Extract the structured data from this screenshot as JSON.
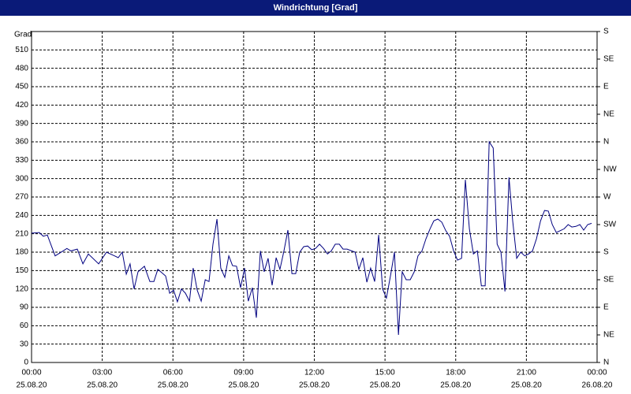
{
  "chart_data": {
    "type": "line",
    "title": "Windrichtung [Grad]",
    "y_label": "Grad",
    "x": [
      0,
      0.33,
      0.5,
      0.67,
      1.0,
      1.34,
      1.5,
      1.67,
      1.94,
      2.18,
      2.41,
      2.85,
      3.18,
      3.52,
      3.68,
      3.85,
      4.02,
      4.18,
      4.35,
      4.52,
      4.79,
      5.02,
      5.19,
      5.36,
      5.69,
      5.86,
      6.03,
      6.19,
      6.36,
      6.53,
      6.7,
      6.86,
      7.03,
      7.2,
      7.37,
      7.53,
      7.7,
      7.87,
      8.03,
      8.2,
      8.37,
      8.53,
      8.7,
      8.87,
      9.04,
      9.2,
      9.37,
      9.54,
      9.71,
      9.87,
      10.04,
      10.21,
      10.38,
      10.54,
      10.71,
      10.88,
      11.05,
      11.21,
      11.38,
      11.55,
      11.72,
      11.89,
      12.05,
      12.22,
      12.39,
      12.56,
      12.72,
      12.89,
      13.06,
      13.22,
      13.39,
      13.73,
      13.89,
      14.06,
      14.23,
      14.39,
      14.56,
      14.73,
      14.9,
      15.06,
      15.23,
      15.4,
      15.57,
      15.73,
      15.9,
      16.07,
      16.24,
      16.4,
      16.57,
      16.74,
      16.91,
      17.07,
      17.24,
      17.41,
      17.58,
      17.74,
      17.91,
      18.08,
      18.25,
      18.41,
      18.58,
      18.75,
      18.92,
      19.09,
      19.25,
      19.42,
      19.59,
      19.76,
      19.92,
      20.09,
      20.26,
      20.42,
      20.59,
      20.76,
      20.93,
      21.09,
      21.26,
      21.43,
      21.6,
      21.77,
      21.93,
      22.1,
      22.27,
      22.43,
      22.6,
      22.77,
      22.93,
      23.1,
      23.27,
      23.43,
      23.6,
      23.77
    ],
    "series": [
      {
        "name": "Windrichtung",
        "color": "#000080",
        "values": [
          211,
          212,
          206,
          208,
          174,
          182,
          186,
          182,
          185,
          161,
          177,
          161,
          180,
          174,
          171,
          180,
          144,
          161,
          120,
          148,
          157,
          132,
          132,
          152,
          141,
          113,
          118,
          99,
          120,
          113,
          100,
          154,
          118,
          100,
          135,
          132,
          193,
          234,
          154,
          139,
          174,
          158,
          157,
          122,
          154,
          100,
          122,
          73,
          182,
          148,
          170,
          126,
          171,
          152,
          182,
          216,
          145,
          145,
          180,
          189,
          190,
          184,
          186,
          193,
          186,
          177,
          182,
          193,
          193,
          185,
          185,
          180,
          152,
          171,
          131,
          154,
          132,
          208,
          120,
          105,
          141,
          180,
          45,
          148,
          135,
          135,
          148,
          174,
          182,
          202,
          218,
          231,
          234,
          229,
          215,
          206,
          182,
          167,
          170,
          298,
          218,
          177,
          182,
          125,
          125,
          360,
          350,
          193,
          180,
          116,
          302,
          231,
          170,
          180,
          174,
          177,
          182,
          202,
          231,
          248,
          247,
          225,
          212,
          215,
          218,
          225,
          221,
          222,
          225,
          216,
          225,
          227
        ]
      }
    ],
    "xlim": [
      0,
      24
    ],
    "xticks": [
      {
        "value": 0,
        "label": "00:00"
      },
      {
        "value": 3,
        "label": "03:00"
      },
      {
        "value": 6,
        "label": "06:00"
      },
      {
        "value": 9,
        "label": "09:00"
      },
      {
        "value": 12,
        "label": "12:00"
      },
      {
        "value": 15,
        "label": "15:00"
      },
      {
        "value": 18,
        "label": "18:00"
      },
      {
        "value": 21,
        "label": "21:00"
      },
      {
        "value": 24,
        "label": "00:00"
      }
    ],
    "xtick_dates": [
      "25.08.20",
      "25.08.20",
      "25.08.20",
      "25.08.20",
      "25.08.20",
      "25.08.20",
      "25.08.20",
      "25.08.20",
      "26.08.20"
    ],
    "ylim": [
      0,
      540
    ],
    "yticks": [
      0,
      30,
      60,
      90,
      120,
      150,
      180,
      210,
      240,
      270,
      300,
      330,
      360,
      390,
      420,
      450,
      480,
      510
    ],
    "y2lim": [
      0,
      540
    ],
    "y2ticks": [
      {
        "value": 0,
        "label": "N"
      },
      {
        "value": 45,
        "label": "NE"
      },
      {
        "value": 90,
        "label": "E"
      },
      {
        "value": 135,
        "label": "SE"
      },
      {
        "value": 180,
        "label": "S"
      },
      {
        "value": 225,
        "label": "SW"
      },
      {
        "value": 270,
        "label": "W"
      },
      {
        "value": 315,
        "label": "NW"
      },
      {
        "value": 360,
        "label": "N"
      },
      {
        "value": 405,
        "label": "NE"
      },
      {
        "value": 450,
        "label": "E"
      },
      {
        "value": 495,
        "label": "SE"
      },
      {
        "value": 540,
        "label": "S"
      }
    ],
    "grid": true
  }
}
